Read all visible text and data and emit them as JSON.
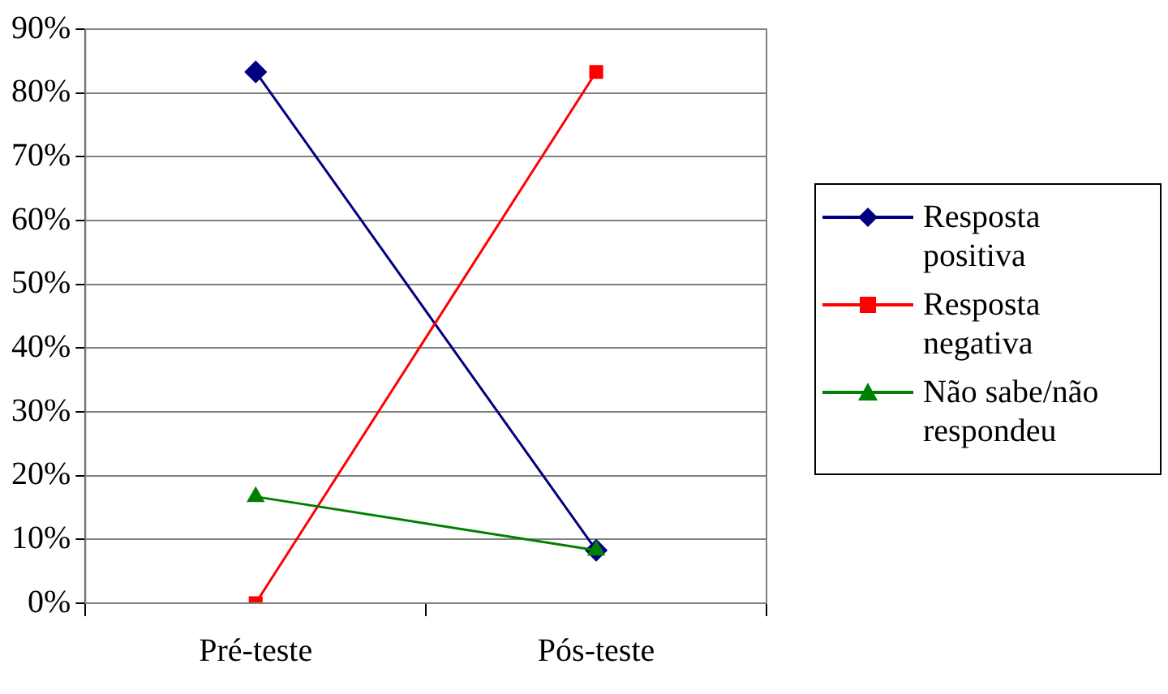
{
  "chart_data": {
    "type": "line",
    "categories": [
      "Pré-teste",
      "Pós-teste"
    ],
    "series": [
      {
        "name": "Resposta positiva",
        "color": "#000080",
        "marker": "diamond",
        "values": [
          83.3,
          8.3
        ]
      },
      {
        "name": "Resposta negativa",
        "color": "#ff0000",
        "marker": "square",
        "values": [
          0,
          83.3
        ]
      },
      {
        "name": "Não sabe/não respondeu",
        "color": "#008000",
        "marker": "triangle",
        "values": [
          16.7,
          8.3
        ]
      }
    ],
    "ylim": [
      0,
      90
    ],
    "yticks": [
      {
        "value": 0,
        "label": "0%"
      },
      {
        "value": 10,
        "label": "10%"
      },
      {
        "value": 20,
        "label": "20%"
      },
      {
        "value": 30,
        "label": "30%"
      },
      {
        "value": 40,
        "label": "40%"
      },
      {
        "value": 50,
        "label": "50%"
      },
      {
        "value": 60,
        "label": "60%"
      },
      {
        "value": 70,
        "label": "70%"
      },
      {
        "value": 80,
        "label": "80%"
      },
      {
        "value": 90,
        "label": "90%"
      }
    ],
    "grid": "y",
    "legend": "right",
    "line_style": "solid"
  }
}
